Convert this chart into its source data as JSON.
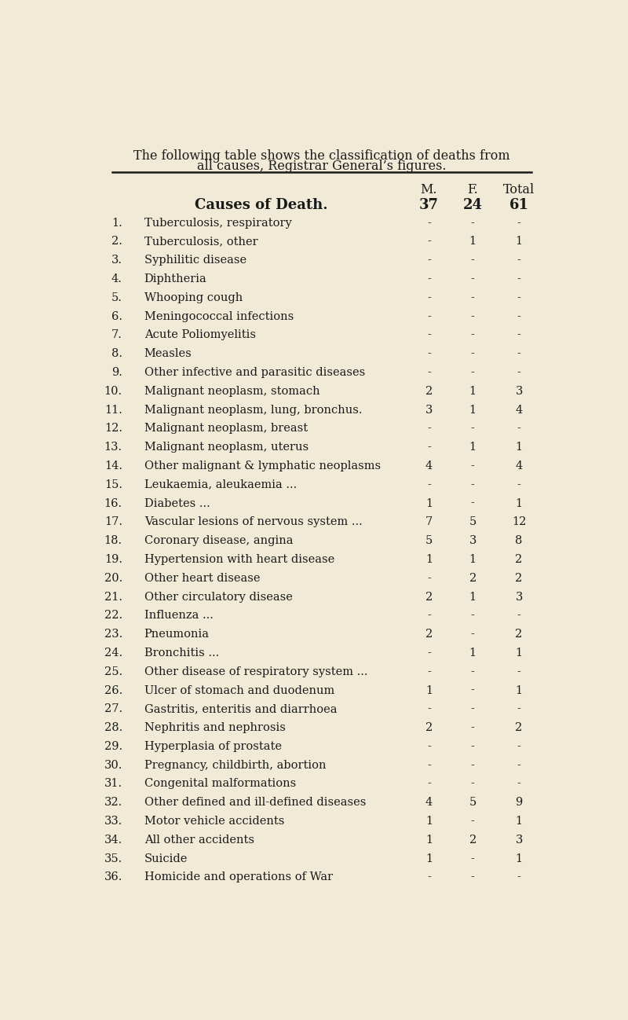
{
  "title_line1": "The following table shows the classification of deaths from",
  "title_line2": "all causes, Registrar General’s figures.",
  "bg_color": "#f0ead6",
  "text_color": "#1a1a1a",
  "header_col1": "M.",
  "header_col2": "F.",
  "header_col3": "Total",
  "subheader_label": "Causes of Death.",
  "subheader_m": "37",
  "subheader_f": "24",
  "subheader_total": "61",
  "row_data": [
    {
      "num": "1.",
      "cause": "Tuberculosis, respiratory",
      "dots": "...   ...",
      "m": "-",
      "f": "-",
      "total": "-"
    },
    {
      "num": "2.",
      "cause": "Tuberculosis, other",
      "dots": "...   ...   ...",
      "m": "-",
      "f": "1",
      "total": "1"
    },
    {
      "num": "3.",
      "cause": "Syphilitic disease",
      "dots": "...   ...   ...",
      "m": "-",
      "f": "-",
      "total": "-"
    },
    {
      "num": "4.",
      "cause": "Diphtheria",
      "dots": "...   ...   ...   ...",
      "m": "-",
      "f": "-",
      "total": "-"
    },
    {
      "num": "5.",
      "cause": "Whooping cough",
      "dots": "...   ...",
      "m": "-",
      "f": "-",
      "total": "-"
    },
    {
      "num": "6.",
      "cause": "Meningococcal infections",
      "dots": "...   ...",
      "m": "-",
      "f": "-",
      "total": "-"
    },
    {
      "num": "7.",
      "cause": "Acute Poliomyelitis",
      "dots": "..    ...   ...",
      "m": "-",
      "f": "-",
      "total": "-"
    },
    {
      "num": "8.",
      "cause": "Measles",
      "dots": "...   ...   ...   ...   ...",
      "m": "-",
      "f": "-",
      "total": "-"
    },
    {
      "num": "9.",
      "cause": "Other infective and parasitic diseases",
      "dots": "",
      "m": "-",
      "f": "-",
      "total": "-"
    },
    {
      "num": "10.",
      "cause": "Malignant neoplasm, stomach",
      "dots": "...",
      "m": "2",
      "f": "1",
      "total": "3"
    },
    {
      "num": "11.",
      "cause": "Malignant neoplasm, lung, bronchus.",
      "dots": "",
      "m": "3",
      "f": "1",
      "total": "4"
    },
    {
      "num": "12.",
      "cause": "Malignant neoplasm, breast",
      "dots": "...   ...",
      "m": "-",
      "f": "-",
      "total": "-"
    },
    {
      "num": "13.",
      "cause": "Malignant neoplasm, uterus",
      "dots": "...   ...",
      "m": "-",
      "f": "1",
      "total": "1"
    },
    {
      "num": "14.",
      "cause": "Other malignant & lymphatic neoplasms",
      "dots": "",
      "m": "4",
      "f": "-",
      "total": "4"
    },
    {
      "num": "15.",
      "cause": "Leukaemia, aleukaemia ...",
      "dots": "...   ...",
      "m": "-",
      "f": "-",
      "total": "-"
    },
    {
      "num": "16.",
      "cause": "Diabetes ...",
      "dots": "..    ...   ...   ...",
      "m": "1",
      "f": "-",
      "total": "1"
    },
    {
      "num": "17.",
      "cause": "Vascular lesions of nervous system ...",
      "dots": "",
      "m": "7",
      "f": "5",
      "total": "12"
    },
    {
      "num": "18.",
      "cause": "Coronary disease, angina",
      "dots": "...   ...",
      "m": "5",
      "f": "3",
      "total": "8"
    },
    {
      "num": "19.",
      "cause": "Hypertension with heart disease",
      "dots": "...",
      "m": "1",
      "f": "1",
      "total": "2"
    },
    {
      "num": "20.",
      "cause": "Other heart disease",
      "dots": "...   ...   ...",
      "m": "-",
      "f": "2",
      "total": "2"
    },
    {
      "num": "21.",
      "cause": "Other circulatory disease",
      "dots": "...   ...",
      "m": "2",
      "f": "1",
      "total": "3"
    },
    {
      "num": "22.",
      "cause": "Influenza ...",
      "dots": "...   ...   ...   ...",
      "m": "-",
      "f": "-",
      "total": "-"
    },
    {
      "num": "23.",
      "cause": "Pneumonia",
      "dots": "...   ...   ...   ...",
      "m": "2",
      "f": "-",
      "total": "2"
    },
    {
      "num": "24.",
      "cause": "Bronchitis ...",
      "dots": "...   ...   ...   ...",
      "m": "-",
      "f": "1",
      "total": "1"
    },
    {
      "num": "25.",
      "cause": "Other disease of respiratory system ...",
      "dots": "",
      "m": "-",
      "f": "-",
      "total": "-"
    },
    {
      "num": "26.",
      "cause": "Ulcer of stomach and duodenum",
      "dots": "...",
      "m": "1",
      "f": "-",
      "total": "1"
    },
    {
      "num": "27.",
      "cause": "Gastritis, enteritis and diarrhoea",
      "dots": "...",
      "m": "-",
      "f": "-",
      "total": "-"
    },
    {
      "num": "28.",
      "cause": "Nephritis and nephrosis",
      "dots": "...   ...",
      "m": "2",
      "f": "-",
      "total": "2"
    },
    {
      "num": "29.",
      "cause": "Hyperplasia of prostate",
      "dots": "...   ...",
      "m": "-",
      "f": "-",
      "total": "-"
    },
    {
      "num": "30.",
      "cause": "Pregnancy, childbirth, abortion",
      "dots": "...",
      "m": "-",
      "f": "-",
      "total": "-"
    },
    {
      "num": "31.",
      "cause": "Congenital malformations",
      "dots": "...   ...",
      "m": "-",
      "f": "-",
      "total": "-"
    },
    {
      "num": "32.",
      "cause": "Other defined and ill-defined diseases",
      "dots": "",
      "m": "4",
      "f": "5",
      "total": "9"
    },
    {
      "num": "33.",
      "cause": "Motor vehicle accidents",
      "dots": "...   ...",
      "m": "1",
      "f": "-",
      "total": "1"
    },
    {
      "num": "34.",
      "cause": "All other accidents",
      "dots": "...   ...   ...",
      "m": "1",
      "f": "2",
      "total": "3"
    },
    {
      "num": "35.",
      "cause": "Suicide",
      "dots": "...   ...   ..    ...",
      "m": "1",
      "f": "-",
      "total": "1"
    },
    {
      "num": "36.",
      "cause": "Homicide and operations of War",
      "dots": "...",
      "m": "-",
      "f": "-",
      "total": "-"
    }
  ]
}
